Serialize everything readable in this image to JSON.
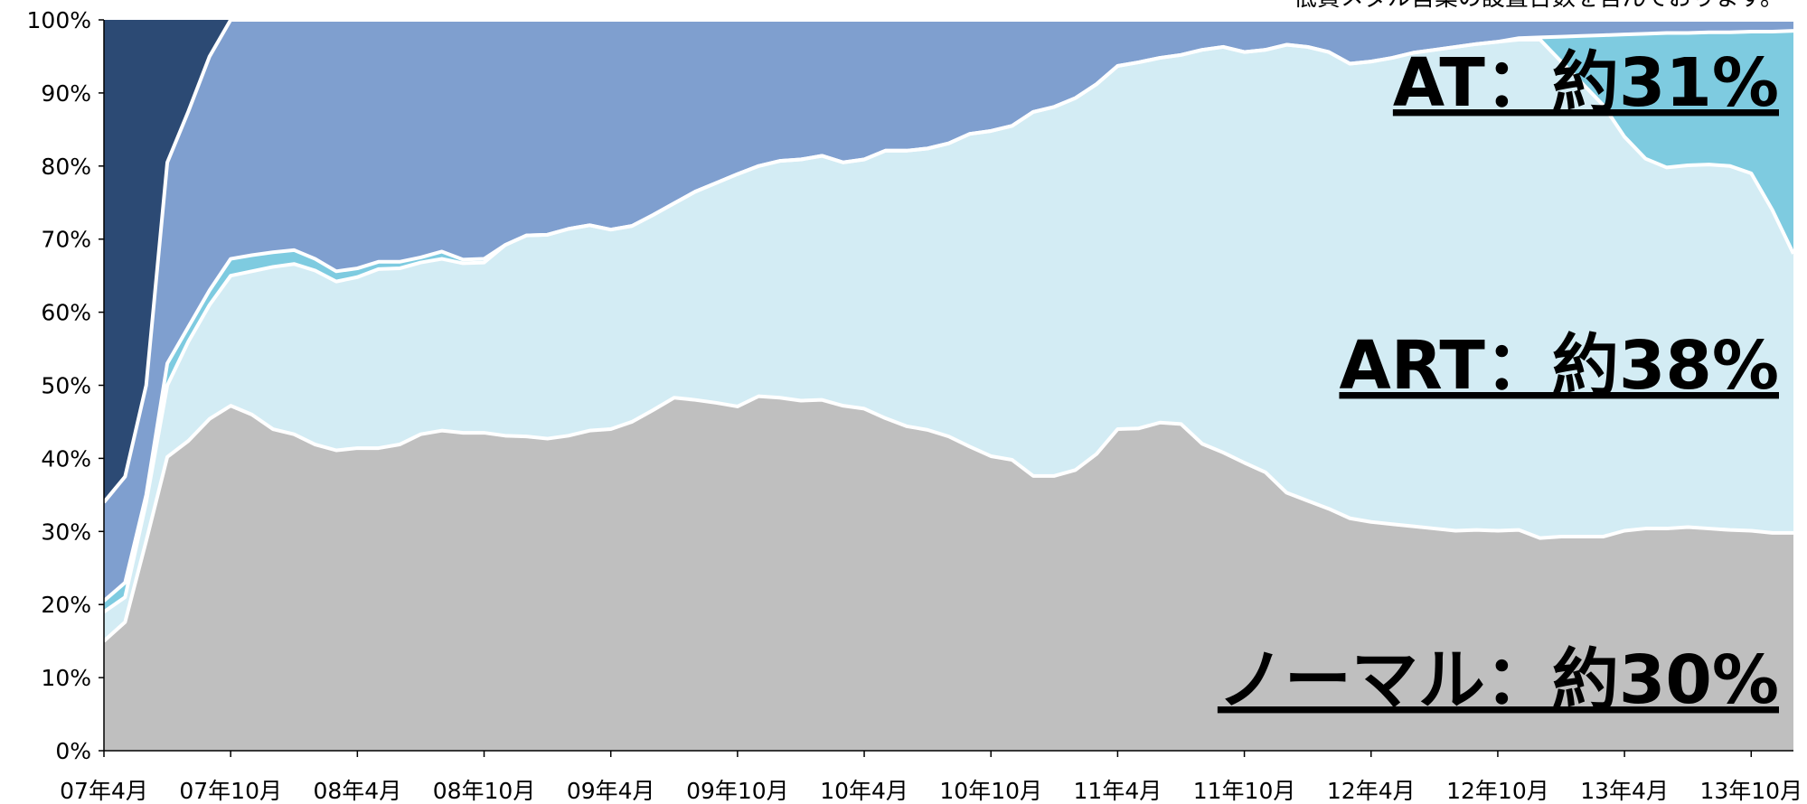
{
  "chart_data": {
    "type": "stacked_area",
    "note": "低貸メダル営業の設置台数を含んでおります。",
    "annotations": [
      "AT：約31%",
      "ART：約38%",
      "ノーマル：約30%"
    ],
    "categories": [
      "07年4月",
      null,
      null,
      null,
      null,
      null,
      "07年10月",
      null,
      null,
      null,
      null,
      null,
      "08年4月",
      null,
      null,
      null,
      null,
      null,
      "08年10月",
      null,
      null,
      null,
      null,
      null,
      "09年4月",
      null,
      null,
      null,
      null,
      null,
      "09年10月",
      null,
      null,
      null,
      null,
      null,
      "10年4月",
      null,
      null,
      null,
      null,
      null,
      "10年10月",
      null,
      null,
      null,
      null,
      null,
      "11年4月",
      null,
      null,
      null,
      null,
      null,
      "11年10月",
      null,
      null,
      null,
      null,
      null,
      "12年4月",
      null,
      null,
      null,
      null,
      null,
      "12年10月",
      null,
      null,
      null,
      null,
      null,
      "13年4月",
      null,
      null,
      null,
      null,
      null,
      "13年10月",
      null,
      null
    ],
    "series": [
      {
        "color": "#bfbfbf",
        "values": [
          15,
          17.6,
          28.7,
          40.2,
          42.4,
          45.4,
          47.2,
          46,
          44,
          43.3,
          41.9,
          41.1,
          41.4,
          41.4,
          41.9,
          43.3,
          43.8,
          43.5,
          43.5,
          43.1,
          43.0,
          42.7,
          43.1,
          43.8,
          44.0,
          45.0,
          46.6,
          48.3,
          48.0,
          47.6,
          47.1,
          48.5,
          48.3,
          47.9,
          48.0,
          47.2,
          46.8,
          45.5,
          44.4,
          43.9,
          43.0,
          41.6,
          40.3,
          39.8,
          37.6,
          37.6,
          38.4,
          40.6,
          44.0,
          44.1,
          44.9,
          44.7,
          42.0,
          40.8,
          39.4,
          38.1,
          35.3,
          34.2,
          33.1,
          31.8,
          31.3,
          31.0,
          30.7,
          30.4,
          30.1,
          30.2,
          30.1,
          30.2,
          29.1,
          29.3,
          29.3,
          29.3,
          30.1,
          30.4,
          30.4,
          30.6,
          30.4,
          30.2,
          30.1,
          29.8,
          29.8
        ]
      },
      {
        "color": "#d3ecf4",
        "values": [
          4.0,
          3.4,
          5.3,
          9.8,
          13.6,
          15.6,
          17.8,
          19.6,
          22.2,
          23.3,
          23.8,
          23.1,
          23.4,
          24.5,
          24.1,
          23.5,
          23.5,
          23.2,
          23.3,
          26.1,
          27.5,
          27.9,
          28.3,
          28.1,
          27.3,
          26.8,
          26.7,
          26.6,
          28.5,
          30.1,
          31.8,
          31.5,
          32.4,
          33.0,
          33.4,
          33.3,
          34.1,
          36.6,
          37.7,
          38.5,
          40.1,
          42.8,
          44.5,
          45.7,
          49.8,
          50.5,
          50.9,
          50.6,
          49.7,
          50.1,
          49.9,
          50.5,
          53.9,
          55.5,
          56.2,
          57.8,
          61.3,
          62.1,
          62.5,
          62.2,
          63.0,
          63.8,
          64.8,
          65.5,
          66.2,
          66.5,
          66.9,
          67.1,
          68.2,
          65.0,
          62.0,
          59.0,
          53.9,
          50.6,
          49.4,
          49.5,
          49.8,
          49.8,
          48.9,
          44.2,
          38.2
        ]
      },
      {
        "color": "#7ecbe0",
        "values": [
          1.5,
          2,
          1,
          3,
          2,
          2,
          2.3,
          2.2,
          2,
          1.9,
          1.6,
          1.4,
          1.2,
          1.0,
          0.9,
          0.7,
          1.0,
          0.5,
          0.5,
          0,
          0,
          0,
          0,
          0,
          0,
          0,
          0,
          0,
          0,
          0,
          0,
          0,
          0,
          0,
          0,
          0,
          0,
          0,
          0,
          0,
          0,
          0,
          0,
          0,
          0,
          0,
          0,
          0,
          0,
          0,
          0,
          0,
          0,
          0,
          0,
          0,
          0,
          0,
          0,
          0,
          0,
          0,
          0,
          0,
          0,
          0,
          0,
          0.2,
          0.3,
          3.4,
          6.5,
          9.6,
          14.0,
          17.1,
          18.4,
          18.1,
          18.1,
          18.3,
          19.4,
          24.4,
          30.5
        ]
      },
      {
        "color": "#7f9fcf",
        "values": [
          13.5,
          14.5,
          15,
          27.5,
          29.5,
          32,
          32.7,
          32.2,
          31.8,
          31.5,
          32.7,
          34.4,
          34.0,
          33.1,
          33.1,
          32.5,
          31.7,
          32.8,
          32.7,
          30.8,
          29.5,
          29.4,
          28.6,
          28.1,
          28.7,
          28.2,
          26.7,
          25.1,
          23.5,
          22.3,
          21.1,
          20.0,
          19.3,
          19.1,
          18.6,
          19.5,
          19.1,
          17.9,
          17.9,
          17.6,
          16.9,
          15.6,
          15.2,
          14.5,
          12.6,
          11.9,
          10.7,
          8.8,
          6.3,
          5.8,
          5.2,
          4.8,
          4.1,
          3.7,
          4.4,
          4.1,
          3.4,
          3.7,
          4.4,
          6.0,
          5.7,
          5.2,
          4.5,
          4.1,
          3.7,
          3.3,
          3.0,
          2.5,
          2.4,
          2.3,
          2.2,
          2.1,
          2.0,
          1.9,
          1.8,
          1.8,
          1.7,
          1.7,
          1.6,
          1.6,
          1.5
        ]
      },
      {
        "color": "#2c4a74",
        "values": [
          66,
          62.5,
          50,
          19.5,
          12.5,
          5,
          0,
          0,
          0,
          0,
          0,
          0,
          0,
          0,
          0,
          0,
          0,
          0,
          0,
          0,
          0,
          0,
          0,
          0,
          0,
          0,
          0,
          0,
          0,
          0,
          0,
          0,
          0,
          0,
          0,
          0,
          0,
          0,
          0,
          0,
          0,
          0,
          0,
          0,
          0,
          0,
          0,
          0,
          0,
          0,
          0,
          0,
          0,
          0,
          0,
          0,
          0,
          0,
          0,
          0,
          0,
          0,
          0,
          0,
          0,
          0,
          0,
          0,
          0,
          0,
          0,
          0,
          0,
          0,
          0,
          0,
          0,
          0,
          0,
          0,
          0
        ]
      }
    ],
    "ylim": [
      0,
      100
    ],
    "yticks": [
      {
        "value": 0,
        "label": "0%"
      },
      {
        "value": 10,
        "label": "10%"
      },
      {
        "value": 20,
        "label": "20%"
      },
      {
        "value": 30,
        "label": "30%"
      },
      {
        "value": 40,
        "label": "40%"
      },
      {
        "value": 50,
        "label": "50%"
      },
      {
        "value": 60,
        "label": "60%"
      },
      {
        "value": 70,
        "label": "70%"
      },
      {
        "value": 80,
        "label": "80%"
      },
      {
        "value": 90,
        "label": "90%"
      },
      {
        "value": 100,
        "label": "100%"
      }
    ]
  }
}
